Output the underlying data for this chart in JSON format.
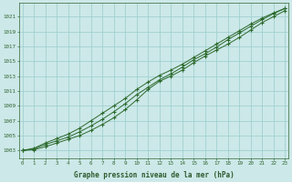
{
  "x": [
    0,
    1,
    2,
    3,
    4,
    5,
    6,
    7,
    8,
    9,
    10,
    11,
    12,
    13,
    14,
    15,
    16,
    17,
    18,
    19,
    20,
    21,
    22,
    23
  ],
  "line1": [
    1003.0,
    1003.1,
    1003.5,
    1004.0,
    1004.5,
    1005.0,
    1005.7,
    1006.5,
    1007.4,
    1008.5,
    1009.8,
    1011.2,
    1012.3,
    1013.0,
    1013.8,
    1014.8,
    1015.7,
    1016.5,
    1017.3,
    1018.2,
    1019.2,
    1020.2,
    1021.0,
    1021.8
  ],
  "line2": [
    1003.0,
    1003.2,
    1003.8,
    1004.3,
    1004.8,
    1005.5,
    1006.3,
    1007.2,
    1008.2,
    1009.3,
    1010.5,
    1011.5,
    1012.5,
    1013.3,
    1014.2,
    1015.2,
    1016.0,
    1016.9,
    1017.9,
    1018.8,
    1019.7,
    1020.6,
    1021.4,
    1022.1
  ],
  "line3": [
    1003.0,
    1003.3,
    1004.0,
    1004.6,
    1005.2,
    1006.0,
    1007.0,
    1008.0,
    1009.0,
    1010.0,
    1011.2,
    1012.2,
    1013.1,
    1013.8,
    1014.6,
    1015.5,
    1016.4,
    1017.3,
    1018.2,
    1019.1,
    1020.0,
    1020.8,
    1021.5,
    1022.1
  ],
  "yticks": [
    1003,
    1005,
    1007,
    1009,
    1011,
    1013,
    1015,
    1017,
    1019,
    1021
  ],
  "ylim": [
    1002.0,
    1022.8
  ],
  "xlim": [
    -0.3,
    23.3
  ],
  "xticks": [
    0,
    1,
    2,
    3,
    4,
    5,
    6,
    7,
    8,
    9,
    10,
    11,
    12,
    13,
    14,
    15,
    16,
    17,
    18,
    19,
    20,
    21,
    22,
    23
  ],
  "xlabel": "Graphe pression niveau de la mer (hPa)",
  "line_color": "#2d6a2d",
  "marker_color": "#2d6a2d",
  "bg_color": "#cce8e8",
  "grid_color": "#99cccc",
  "axis_color": "#336633",
  "tick_label_color": "#2d5a2d",
  "xlabel_color": "#2d5a2d"
}
